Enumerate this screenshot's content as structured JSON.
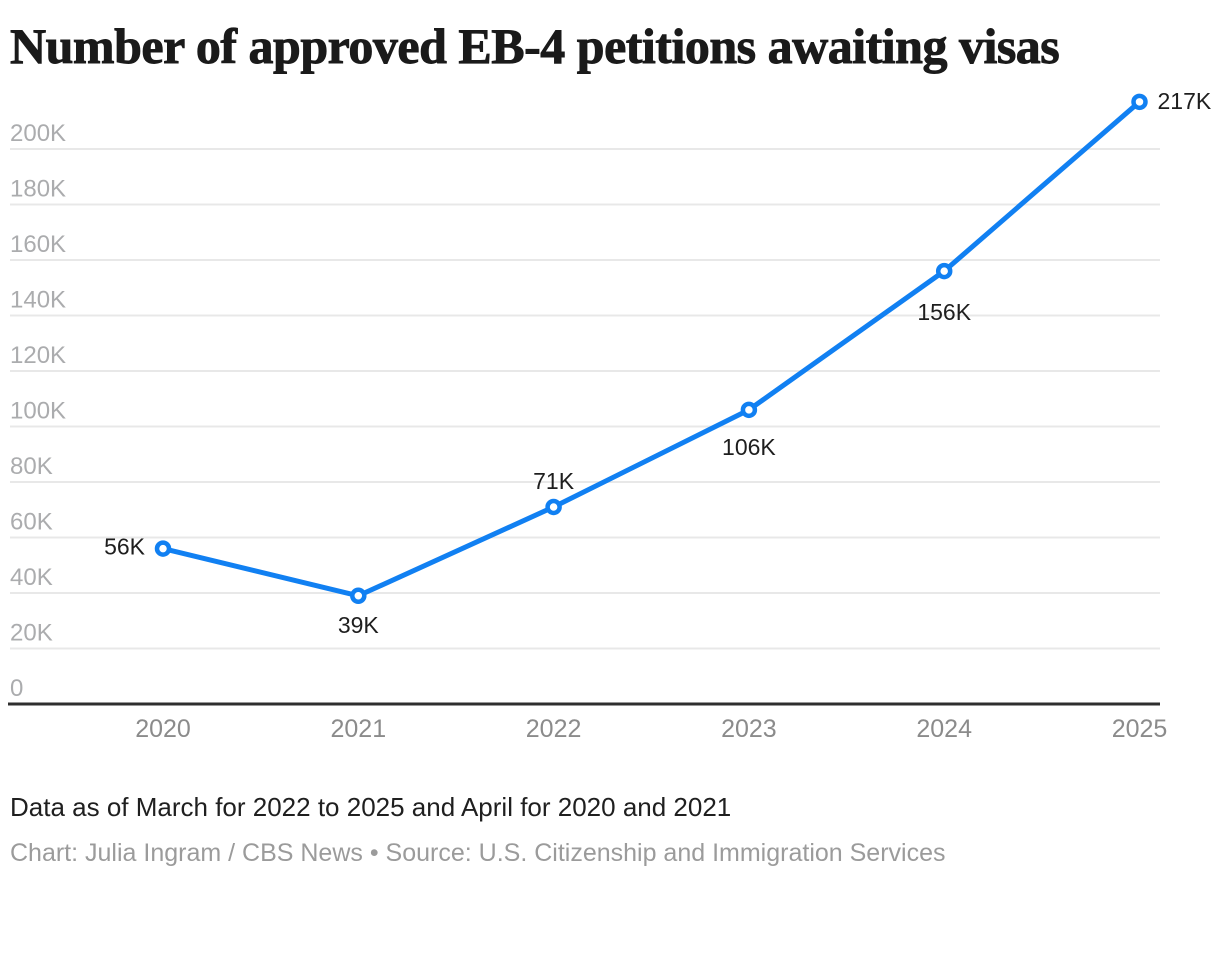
{
  "title": "Number of approved EB-4 petitions awaiting visas",
  "chart_data": {
    "type": "line",
    "title": "Number of approved EB-4 petitions awaiting visas",
    "x": [
      "2020",
      "2021",
      "2022",
      "2023",
      "2024",
      "2025"
    ],
    "series": [
      {
        "name": "Approved EB-4 petitions awaiting visas",
        "values": [
          56000,
          39000,
          71000,
          106000,
          156000,
          217000
        ]
      }
    ],
    "point_labels": [
      "56K",
      "39K",
      "71K",
      "106K",
      "156K",
      "217K"
    ],
    "xlabel": "",
    "ylabel": "",
    "ylim": [
      0,
      220000
    ],
    "ytick_step": 20000,
    "ytick_labels": [
      "0",
      "20K",
      "40K",
      "60K",
      "80K",
      "100K",
      "120K",
      "140K",
      "160K",
      "180K",
      "200K"
    ],
    "grid": "horizontal-only",
    "legend": "none",
    "colors": {
      "line": "#1180f2",
      "point_fill": "#ffffff",
      "grid": "#e8e8e8",
      "axis": "#2e2e2e",
      "ytick_text": "#abacae",
      "xtick_text": "#8b8b8b",
      "point_label_text": "#1e1e1e"
    }
  },
  "footer": {
    "note": "Data as of March for 2022 to 2025 and April for 2020 and 2021",
    "credit": "Chart: Julia Ingram / CBS News • Source: U.S. Citizenship and Immigration Services"
  }
}
